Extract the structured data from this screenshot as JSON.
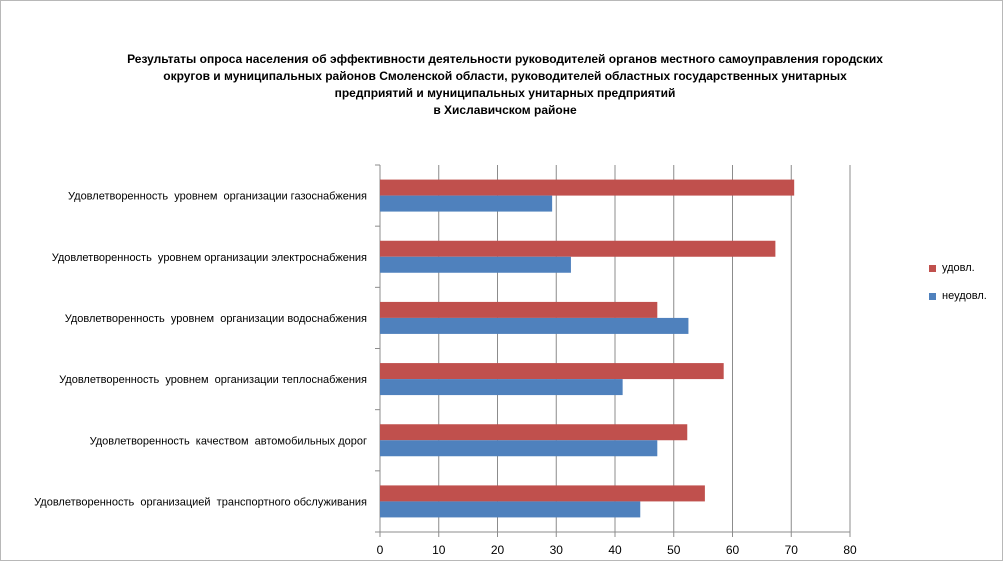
{
  "chart_data": {
    "type": "bar",
    "orientation": "horizontal",
    "title_lines": [
      "Результаты опроса населения об эффективности деятельности руководителей органов местного самоуправления городских",
      "округов и муниципальных районов Смоленской области, руководителей областных государственных унитарных",
      "предприятий и муниципальных унитарных предприятий",
      "в Хиславичском районе"
    ],
    "categories": [
      "Удовлетворенность  уровнем  организации газоснабжения",
      "Удовлетворенность  уровнем организации электроснабжения",
      "Удовлетворенность  уровнем  организации водоснабжения",
      "Удовлетворенность  уровнем  организации теплоснабжения",
      "Удовлетворенность  качеством  автомобильных дорог",
      "Удовлетворенность  организацией  транспортного обслуживания"
    ],
    "series": [
      {
        "name": "удовл.",
        "color": "#c0504d",
        "values": [
          70.5,
          67.3,
          47.2,
          58.5,
          52.3,
          55.3
        ]
      },
      {
        "name": "неудовл.",
        "color": "#4f81bd",
        "values": [
          29.3,
          32.5,
          52.5,
          41.3,
          47.2,
          44.3
        ]
      }
    ],
    "xlim": [
      0,
      80
    ],
    "x_ticks": [
      0,
      10,
      20,
      30,
      40,
      50,
      60,
      70,
      80
    ],
    "grid": "vertical",
    "legend_position": "right"
  }
}
